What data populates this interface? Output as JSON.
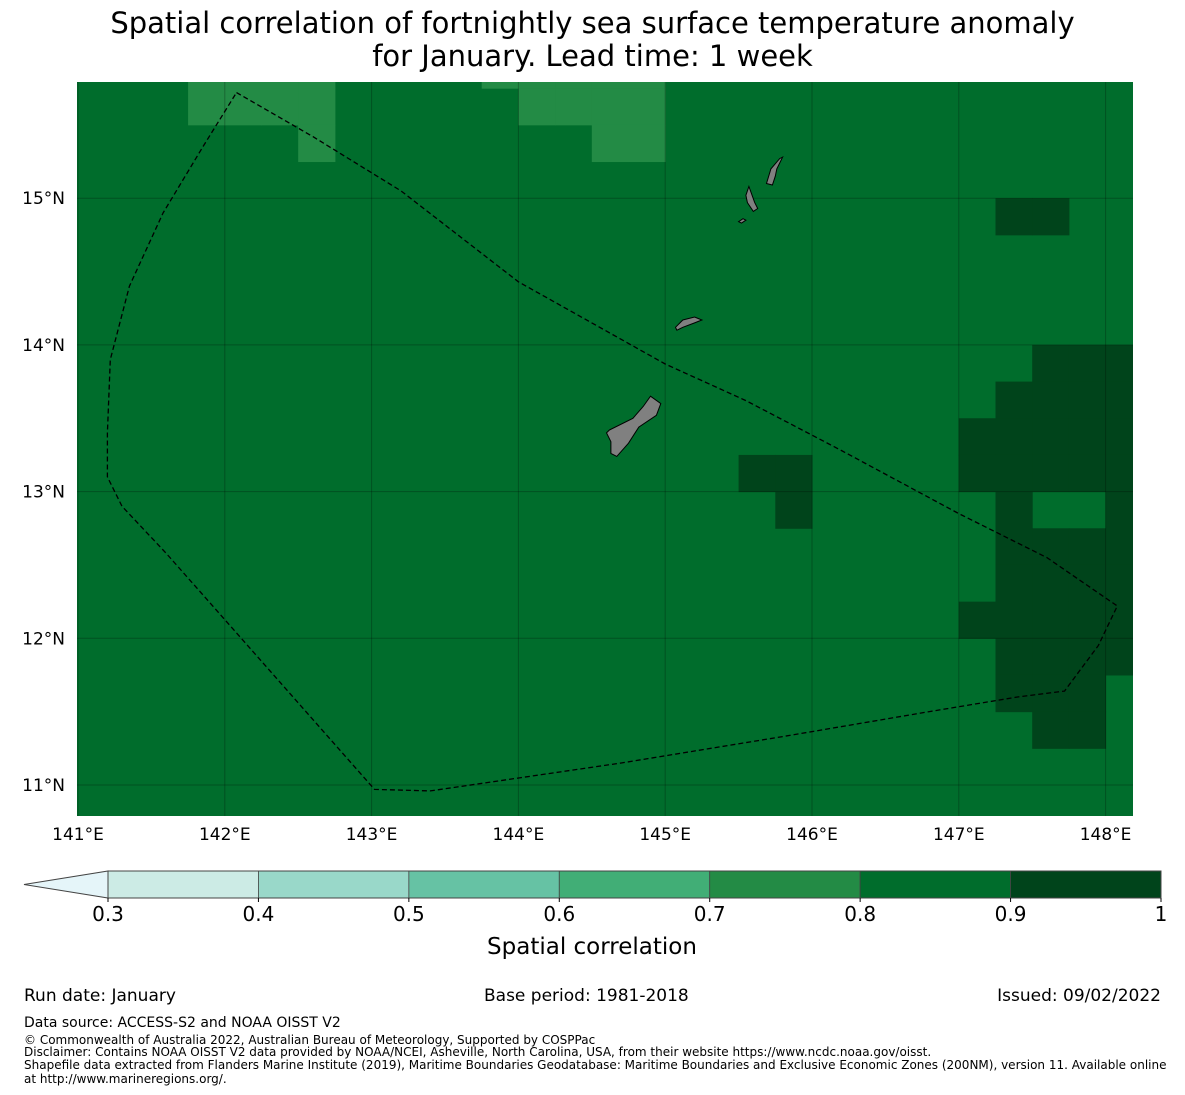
{
  "title": {
    "line1": "Spatial correlation of fortnightly sea surface temperature anomaly",
    "line2": "for January. Lead time: 1 week"
  },
  "map": {
    "extent": {
      "lon_min": 141.0,
      "lon_max": 148.2,
      "lat_min": 10.8,
      "lat_max": 15.8
    },
    "lon_ticks": [
      {
        "value": 141,
        "label": "141°E"
      },
      {
        "value": 142,
        "label": "142°E"
      },
      {
        "value": 143,
        "label": "143°E"
      },
      {
        "value": 144,
        "label": "144°E"
      },
      {
        "value": 145,
        "label": "145°E"
      },
      {
        "value": 146,
        "label": "146°E"
      },
      {
        "value": 147,
        "label": "147°E"
      },
      {
        "value": 148,
        "label": "148°E"
      }
    ],
    "lat_ticks": [
      {
        "value": 15,
        "label": "15°N"
      },
      {
        "value": 14,
        "label": "14°N"
      },
      {
        "value": 13,
        "label": "13°N"
      },
      {
        "value": 12,
        "label": "12°N"
      },
      {
        "value": 11,
        "label": "11°N"
      }
    ],
    "cell_size_deg": 0.25,
    "background_class": "0.8-0.9",
    "colors": {
      "0.3-0.4": "#ccebe5",
      "0.4-0.5": "#99d8c9",
      "0.5-0.6": "#66c2a4",
      "0.6-0.7": "#41ae76",
      "0.7-0.8": "#238b45",
      "0.8-0.9": "#006d2c",
      "0.9-1": "#00441b",
      "below": "#e5f5f9",
      "land": "#808080"
    },
    "anomaly_cells": [
      {
        "class": "0.7-0.8",
        "lon": 141.875,
        "lat": 15.625
      },
      {
        "class": "0.7-0.8",
        "lon": 142.125,
        "lat": 15.625
      },
      {
        "class": "0.7-0.8",
        "lon": 142.375,
        "lat": 15.625
      },
      {
        "class": "0.7-0.8",
        "lon": 142.625,
        "lat": 15.625
      },
      {
        "class": "0.7-0.8",
        "lon": 141.875,
        "lat": 15.875
      },
      {
        "class": "0.7-0.8",
        "lon": 142.125,
        "lat": 15.875
      },
      {
        "class": "0.7-0.8",
        "lon": 142.375,
        "lat": 15.875
      },
      {
        "class": "0.7-0.8",
        "lon": 142.625,
        "lat": 15.875
      },
      {
        "class": "0.7-0.8",
        "lon": 142.625,
        "lat": 15.375
      },
      {
        "class": "0.7-0.8",
        "lon": 143.875,
        "lat": 15.875
      },
      {
        "class": "0.7-0.8",
        "lon": 144.125,
        "lat": 15.875
      },
      {
        "class": "0.7-0.8",
        "lon": 144.375,
        "lat": 15.875
      },
      {
        "class": "0.7-0.8",
        "lon": 144.625,
        "lat": 15.875
      },
      {
        "class": "0.7-0.8",
        "lon": 144.875,
        "lat": 15.875
      },
      {
        "class": "0.7-0.8",
        "lon": 144.125,
        "lat": 15.625
      },
      {
        "class": "0.7-0.8",
        "lon": 144.375,
        "lat": 15.625
      },
      {
        "class": "0.7-0.8",
        "lon": 144.625,
        "lat": 15.625
      },
      {
        "class": "0.7-0.8",
        "lon": 144.875,
        "lat": 15.625
      },
      {
        "class": "0.7-0.8",
        "lon": 144.625,
        "lat": 15.375
      },
      {
        "class": "0.7-0.8",
        "lon": 144.875,
        "lat": 15.375
      },
      {
        "class": "0.9-1",
        "lon": 147.375,
        "lat": 14.875
      },
      {
        "class": "0.9-1",
        "lon": 147.625,
        "lat": 14.875
      },
      {
        "class": "0.9-1",
        "lon": 145.625,
        "lat": 13.125
      },
      {
        "class": "0.9-1",
        "lon": 145.875,
        "lat": 13.125
      },
      {
        "class": "0.9-1",
        "lon": 145.875,
        "lat": 12.875
      },
      {
        "class": "0.9-1",
        "lon": 147.625,
        "lat": 13.875
      },
      {
        "class": "0.9-1",
        "lon": 147.875,
        "lat": 13.875
      },
      {
        "class": "0.9-1",
        "lon": 148.125,
        "lat": 13.875
      },
      {
        "class": "0.9-1",
        "lon": 147.375,
        "lat": 13.625
      },
      {
        "class": "0.9-1",
        "lon": 147.625,
        "lat": 13.625
      },
      {
        "class": "0.9-1",
        "lon": 147.875,
        "lat": 13.625
      },
      {
        "class": "0.9-1",
        "lon": 148.125,
        "lat": 13.625
      },
      {
        "class": "0.9-1",
        "lon": 147.125,
        "lat": 13.375
      },
      {
        "class": "0.9-1",
        "lon": 147.375,
        "lat": 13.375
      },
      {
        "class": "0.9-1",
        "lon": 147.625,
        "lat": 13.375
      },
      {
        "class": "0.9-1",
        "lon": 147.875,
        "lat": 13.375
      },
      {
        "class": "0.9-1",
        "lon": 148.125,
        "lat": 13.375
      },
      {
        "class": "0.9-1",
        "lon": 147.125,
        "lat": 13.125
      },
      {
        "class": "0.9-1",
        "lon": 147.375,
        "lat": 13.125
      },
      {
        "class": "0.9-1",
        "lon": 147.625,
        "lat": 13.125
      },
      {
        "class": "0.9-1",
        "lon": 147.875,
        "lat": 13.125
      },
      {
        "class": "0.9-1",
        "lon": 148.125,
        "lat": 13.125
      },
      {
        "class": "0.9-1",
        "lon": 147.375,
        "lat": 12.875
      },
      {
        "class": "0.9-1",
        "lon": 148.125,
        "lat": 12.875
      },
      {
        "class": "0.9-1",
        "lon": 147.375,
        "lat": 12.625
      },
      {
        "class": "0.9-1",
        "lon": 147.625,
        "lat": 12.625
      },
      {
        "class": "0.9-1",
        "lon": 147.875,
        "lat": 12.625
      },
      {
        "class": "0.9-1",
        "lon": 148.125,
        "lat": 12.625
      },
      {
        "class": "0.9-1",
        "lon": 147.375,
        "lat": 12.375
      },
      {
        "class": "0.9-1",
        "lon": 147.625,
        "lat": 12.375
      },
      {
        "class": "0.9-1",
        "lon": 147.875,
        "lat": 12.375
      },
      {
        "class": "0.9-1",
        "lon": 148.125,
        "lat": 12.375
      },
      {
        "class": "0.9-1",
        "lon": 147.125,
        "lat": 12.125
      },
      {
        "class": "0.9-1",
        "lon": 147.375,
        "lat": 12.125
      },
      {
        "class": "0.9-1",
        "lon": 147.625,
        "lat": 12.125
      },
      {
        "class": "0.9-1",
        "lon": 147.875,
        "lat": 12.125
      },
      {
        "class": "0.9-1",
        "lon": 148.125,
        "lat": 12.125
      },
      {
        "class": "0.9-1",
        "lon": 147.375,
        "lat": 11.875
      },
      {
        "class": "0.9-1",
        "lon": 147.625,
        "lat": 11.875
      },
      {
        "class": "0.9-1",
        "lon": 147.875,
        "lat": 11.875
      },
      {
        "class": "0.9-1",
        "lon": 148.125,
        "lat": 11.875
      },
      {
        "class": "0.9-1",
        "lon": 147.375,
        "lat": 11.625
      },
      {
        "class": "0.9-1",
        "lon": 147.625,
        "lat": 11.625
      },
      {
        "class": "0.9-1",
        "lon": 147.875,
        "lat": 11.625
      },
      {
        "class": "0.9-1",
        "lon": 147.625,
        "lat": 11.375
      },
      {
        "class": "0.9-1",
        "lon": 147.875,
        "lat": 11.375
      }
    ],
    "eez_boundary": [
      [
        142.08,
        15.72
      ],
      [
        142.6,
        15.42
      ],
      [
        143.2,
        15.05
      ],
      [
        144.0,
        14.43
      ],
      [
        144.5,
        14.15
      ],
      [
        145.0,
        13.87
      ],
      [
        145.55,
        13.62
      ],
      [
        146.2,
        13.28
      ],
      [
        147.0,
        12.85
      ],
      [
        147.6,
        12.55
      ],
      [
        148.08,
        12.22
      ],
      [
        147.95,
        11.95
      ],
      [
        147.72,
        11.64
      ],
      [
        147.4,
        11.6
      ],
      [
        146.8,
        11.5
      ],
      [
        145.8,
        11.33
      ],
      [
        144.7,
        11.15
      ],
      [
        143.4,
        10.96
      ],
      [
        143.02,
        10.97
      ],
      [
        142.2,
        11.9
      ],
      [
        141.6,
        12.58
      ],
      [
        141.3,
        12.9
      ],
      [
        141.2,
        13.1
      ],
      [
        141.2,
        13.4
      ],
      [
        141.22,
        13.9
      ],
      [
        141.35,
        14.4
      ],
      [
        141.58,
        14.9
      ],
      [
        141.85,
        15.35
      ],
      [
        142.08,
        15.72
      ]
    ],
    "islands": [
      {
        "name": "Guam",
        "coords": [
          [
            144.62,
            13.42
          ],
          [
            144.78,
            13.5
          ],
          [
            144.85,
            13.58
          ],
          [
            144.9,
            13.65
          ],
          [
            144.97,
            13.6
          ],
          [
            144.94,
            13.52
          ],
          [
            144.82,
            13.44
          ],
          [
            144.75,
            13.33
          ],
          [
            144.67,
            13.24
          ],
          [
            144.63,
            13.26
          ],
          [
            144.63,
            13.34
          ],
          [
            144.6,
            13.4
          ]
        ]
      },
      {
        "name": "Rota",
        "coords": [
          [
            145.07,
            14.12
          ],
          [
            145.12,
            14.17
          ],
          [
            145.2,
            14.19
          ],
          [
            145.25,
            14.17
          ],
          [
            145.2,
            14.15
          ],
          [
            145.12,
            14.12
          ],
          [
            145.08,
            14.1
          ]
        ]
      },
      {
        "name": "Saipan",
        "coords": [
          [
            145.69,
            15.1
          ],
          [
            145.72,
            15.2
          ],
          [
            145.78,
            15.27
          ],
          [
            145.8,
            15.28
          ],
          [
            145.76,
            15.2
          ],
          [
            145.75,
            15.15
          ],
          [
            145.73,
            15.09
          ]
        ]
      },
      {
        "name": "Tinian",
        "coords": [
          [
            145.55,
            15.02
          ],
          [
            145.57,
            15.08
          ],
          [
            145.61,
            14.97
          ],
          [
            145.63,
            14.93
          ],
          [
            145.6,
            14.91
          ],
          [
            145.56,
            14.97
          ]
        ]
      },
      {
        "name": "Aguijan",
        "coords": [
          [
            145.5,
            14.84
          ],
          [
            145.53,
            14.86
          ],
          [
            145.55,
            14.85
          ],
          [
            145.52,
            14.83
          ]
        ]
      }
    ]
  },
  "colorbar": {
    "title": "Spatial correlation",
    "boundaries": [
      "0.3",
      "0.4",
      "0.5",
      "0.6",
      "0.7",
      "0.8",
      "0.9",
      "1"
    ],
    "segments": [
      {
        "class": "0.3-0.4"
      },
      {
        "class": "0.4-0.5"
      },
      {
        "class": "0.5-0.6"
      },
      {
        "class": "0.6-0.7"
      },
      {
        "class": "0.7-0.8"
      },
      {
        "class": "0.8-0.9"
      },
      {
        "class": "0.9-1"
      }
    ],
    "extend_color_class": "below"
  },
  "footer": {
    "run_date": "Run date: January",
    "base_period": "Base period: 1981-2018",
    "issued": "Issued: 09/02/2022",
    "data_source": "Data source: ACCESS-S2 and NOAA OISST V2",
    "copyright": "© Commonwealth of Australia 2022, Australian Bureau of Meteorology, Supported by COSPPac",
    "disclaimer": "Disclaimer: Contains NOAA OISST V2 data provided by NOAA/NCEI, Asheville, North Carolina, USA, from their website https://www.ncdc.noaa.gov/oisst.",
    "shapefile_line1": "Shapefile data extracted from Flanders Marine Institute (2019), Maritime Boundaries Geodatabase: Maritime Boundaries and Exclusive Economic Zones (200NM), version 11. Available online",
    "shapefile_line2": "at http://www.marineregions.org/."
  }
}
